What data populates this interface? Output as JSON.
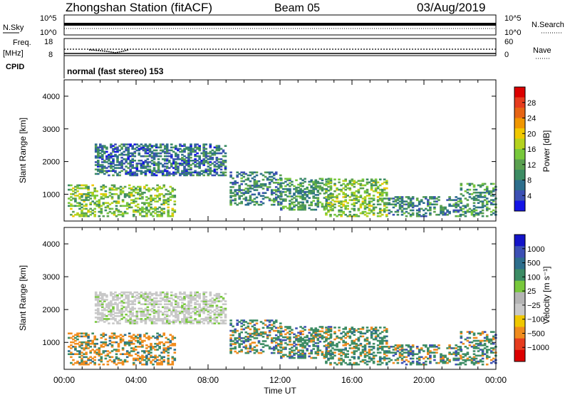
{
  "header": {
    "station": "Zhongshan Station (fitACF)",
    "beam": "Beam 05",
    "date": "03/Aug/2019"
  },
  "top_panel": {
    "left_label": "N.Sky",
    "left_ticks": [
      "10^5",
      "10^0"
    ],
    "right_label": "N.Search",
    "right_ticks": [
      "10^5",
      "10^0"
    ]
  },
  "freq_panel": {
    "left_label_1": "Freq.",
    "left_label_2": "[MHz]",
    "left_ticks": [
      "18",
      "8"
    ],
    "right_label": "Nave",
    "right_ticks": [
      "60",
      "0"
    ]
  },
  "cpid": {
    "label": "CPID",
    "text": "normal (fast stereo) 153"
  },
  "colors": {
    "power_scale": [
      "#1414e6",
      "#3c50b4",
      "#2d6e8c",
      "#3c8c64",
      "#5aa050",
      "#78c83c",
      "#b4d21e",
      "#f0c800",
      "#f09600",
      "#e66414",
      "#e63c1e",
      "#dc0000"
    ],
    "velocity_scale": [
      "#dc0000",
      "#e63c1e",
      "#f08c1e",
      "#f0c800",
      "#c8c8c8",
      "#b4b4b4",
      "#78c83c",
      "#3c8c64",
      "#2d6e8c",
      "#3c50b4",
      "#1414c8"
    ]
  },
  "chart_data": [
    {
      "type": "heatmap",
      "title": "Power",
      "ylabel": "Slant Range [km]",
      "xlabel": "Time UT",
      "xlim": [
        "00:00",
        "24:00"
      ],
      "ylim": [
        180,
        4500
      ],
      "y_ticks": [
        1000,
        2000,
        3000,
        4000
      ],
      "x_ticks": [
        "00:00",
        "04:00",
        "08:00",
        "12:00",
        "16:00",
        "20:00",
        "00:00"
      ],
      "colorbar": {
        "label": "Power [dB]",
        "min": 0,
        "max": 32,
        "ticks": [
          "28",
          "24",
          "20",
          "16",
          "12",
          "8",
          "4"
        ]
      },
      "regions": [
        {
          "t0": 1.7,
          "t1": 9.0,
          "r0": 1550,
          "r1": 2500,
          "level": 6,
          "desc": "upper band"
        },
        {
          "t0": 0.2,
          "t1": 6.2,
          "r0": 300,
          "r1": 1250,
          "level": 14
        },
        {
          "t0": 9.2,
          "t1": 12.0,
          "r0": 650,
          "r1": 1650,
          "level": 8
        },
        {
          "t0": 12.0,
          "t1": 14.8,
          "r0": 500,
          "r1": 1450,
          "level": 10
        },
        {
          "t0": 14.5,
          "t1": 17.9,
          "r0": 300,
          "r1": 1450,
          "level": 14
        },
        {
          "t0": 18.0,
          "t1": 22.0,
          "r0": 300,
          "r1": 900,
          "level": 8
        },
        {
          "t0": 22.0,
          "t1": 24.0,
          "r0": 300,
          "r1": 1300,
          "level": 10
        }
      ]
    },
    {
      "type": "heatmap",
      "title": "Velocity",
      "ylabel": "Slant Range [km]",
      "xlabel": "Time UT",
      "xlim": [
        "00:00",
        "24:00"
      ],
      "ylim": [
        180,
        4500
      ],
      "y_ticks": [
        1000,
        2000,
        3000,
        4000
      ],
      "x_ticks": [
        "00:00",
        "04:00",
        "08:00",
        "12:00",
        "16:00",
        "20:00",
        "00:00"
      ],
      "colorbar": {
        "label": "Velocity [m s⁻¹]",
        "ticks": [
          "1000",
          "500",
          "100",
          "25",
          "−25",
          "−100",
          "−500",
          "−1000"
        ]
      }
    }
  ]
}
